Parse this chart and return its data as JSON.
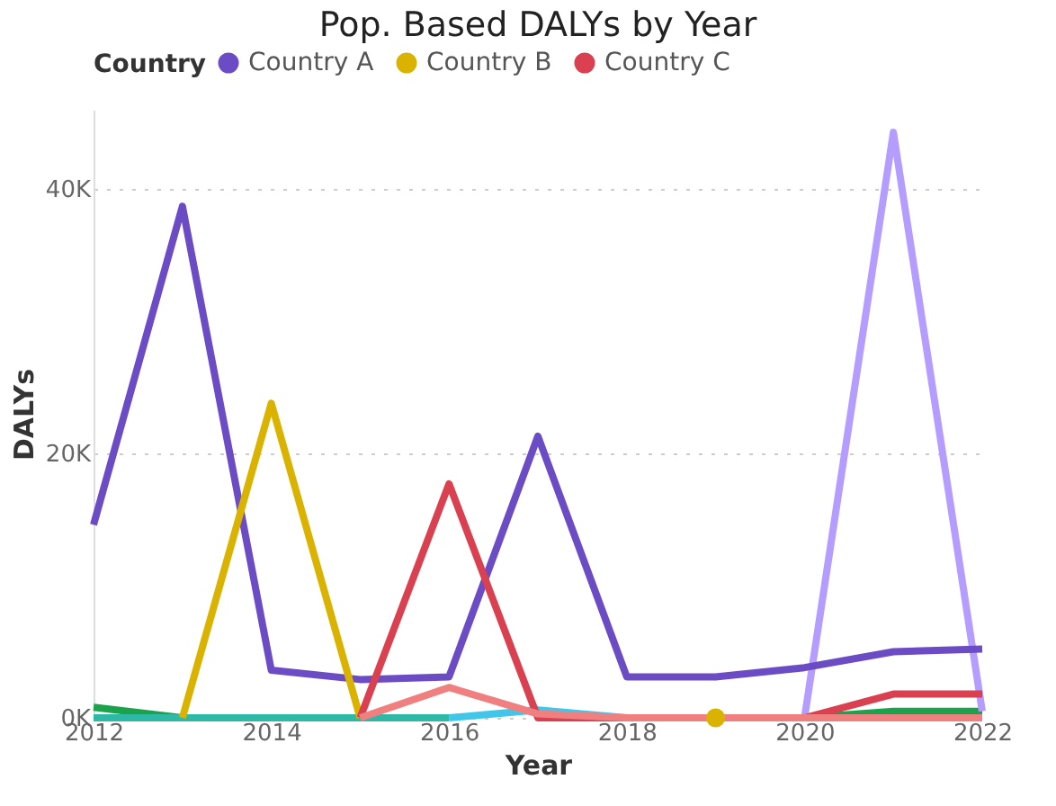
{
  "chart_data": {
    "type": "line",
    "title": "Pop. Based DALYs by Year",
    "xlabel": "Year",
    "ylabel": "DALYs",
    "legend_title": "Country",
    "legend": "top left",
    "grid": "y",
    "marker": "none",
    "line_style": "solid",
    "x": [
      2012,
      2013,
      2014,
      2015,
      2016,
      2017,
      2018,
      2019,
      2020,
      2021,
      2022
    ],
    "xlim": [
      2012,
      2022
    ],
    "xticks": [
      2012,
      2014,
      2016,
      2018,
      2020,
      2022
    ],
    "ylim": [
      0,
      46000
    ],
    "yticks": [
      {
        "value": 0,
        "label": "0K"
      },
      {
        "value": 20000,
        "label": "20K"
      },
      {
        "value": 40000,
        "label": "40K"
      }
    ],
    "series": [
      {
        "color": "#1aa34a",
        "values": [
          800,
          0,
          null,
          null,
          null,
          null,
          null,
          null,
          0,
          500,
          500
        ]
      },
      {
        "color": "#2eb8a6",
        "values": [
          0,
          0,
          0,
          0,
          0,
          null,
          null,
          null,
          null,
          null,
          null
        ]
      },
      {
        "color": "#3fc6e8",
        "values": [
          null,
          null,
          null,
          null,
          0,
          600,
          0,
          null,
          null,
          null,
          null
        ]
      },
      {
        "color": "#b59cff",
        "values": [
          null,
          null,
          null,
          null,
          null,
          null,
          null,
          null,
          0,
          44300,
          500
        ]
      },
      {
        "name": "Country A",
        "color": "#6b4cc4",
        "values": [
          14600,
          38700,
          3600,
          2900,
          3100,
          21300,
          3100,
          3100,
          3800,
          5000,
          5200
        ]
      },
      {
        "name": "Country B",
        "color": "#d9b300",
        "values": [
          null,
          0,
          23800,
          0,
          null,
          null,
          null,
          0,
          null,
          null,
          null
        ]
      },
      {
        "name": "Country C",
        "color": "#d94050",
        "values": [
          null,
          null,
          null,
          0,
          17700,
          0,
          0,
          0,
          0,
          1800,
          1800
        ]
      },
      {
        "color": "#f08080",
        "values": [
          null,
          null,
          null,
          0,
          2300,
          300,
          0,
          0,
          0,
          0,
          0
        ]
      }
    ]
  }
}
